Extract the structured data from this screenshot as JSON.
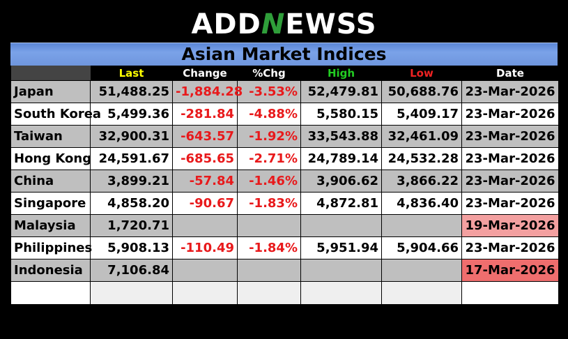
{
  "logo": {
    "part1": "ADD",
    "mark": "N",
    "part2": "EWSS"
  },
  "title": "Asian Market Indices",
  "headers": {
    "last": {
      "label": "Last",
      "color": "#ffff00"
    },
    "change": {
      "label": "Change",
      "color": "#ffffff"
    },
    "pct": {
      "label": "%Chg",
      "color": "#ffffff"
    },
    "high": {
      "label": "High",
      "color": "#22cc22"
    },
    "low": {
      "label": "Low",
      "color": "#ee2222"
    },
    "date": {
      "label": "Date",
      "color": "#ffffff"
    }
  },
  "rows": [
    {
      "name": "Japan",
      "last": "51,488.25",
      "change": "-1,884.28",
      "pct": "-3.53%",
      "high": "52,479.81",
      "low": "50,688.76",
      "date": "23-Mar-2026"
    },
    {
      "name": "South Korea",
      "last": "5,499.36",
      "change": "-281.84",
      "pct": "-4.88%",
      "high": "5,580.15",
      "low": "5,409.17",
      "date": "23-Mar-2026"
    },
    {
      "name": "Taiwan",
      "last": "32,900.31",
      "change": "-643.57",
      "pct": "-1.92%",
      "high": "33,543.88",
      "low": "32,461.09",
      "date": "23-Mar-2026"
    },
    {
      "name": "Hong Kong",
      "last": "24,591.67",
      "change": "-685.65",
      "pct": "-2.71%",
      "high": "24,789.14",
      "low": "24,532.28",
      "date": "23-Mar-2026"
    },
    {
      "name": "China",
      "last": "3,899.21",
      "change": "-57.84",
      "pct": "-1.46%",
      "high": "3,906.62",
      "low": "3,866.22",
      "date": "23-Mar-2026"
    },
    {
      "name": "Singapore",
      "last": "4,858.20",
      "change": "-90.67",
      "pct": "-1.83%",
      "high": "4,872.81",
      "low": "4,836.40",
      "date": "23-Mar-2026"
    },
    {
      "name": "Malaysia",
      "last": "1,720.71",
      "change": "",
      "pct": "",
      "high": "",
      "low": "",
      "date": "19-Mar-2026"
    },
    {
      "name": "Philippines",
      "last": "5,908.13",
      "change": "-110.49",
      "pct": "-1.84%",
      "high": "5,951.94",
      "low": "5,904.66",
      "date": "23-Mar-2026"
    },
    {
      "name": "Indonesia",
      "last": "7,106.84",
      "change": "",
      "pct": "",
      "high": "",
      "low": "",
      "date": "17-Mar-2026"
    }
  ],
  "colors": {
    "negative": "#e8191b",
    "stale_date_light": "#f3a0a0",
    "stale_date_dark": "#ef6e6e"
  }
}
